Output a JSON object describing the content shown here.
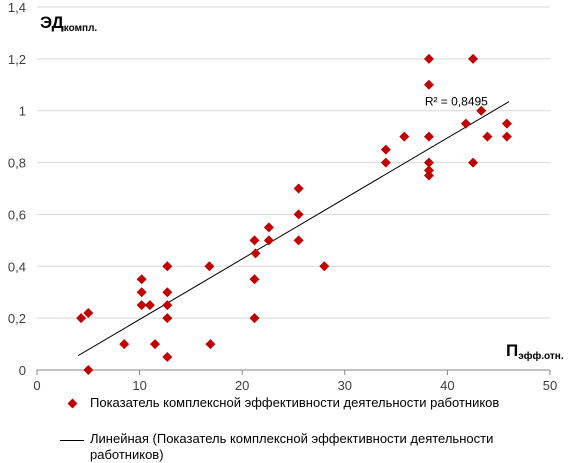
{
  "chart_data": {
    "type": "scatter",
    "xlabel": {
      "main": "П",
      "sub": "эфф.отн."
    },
    "ylabel": {
      "main": "ЭД",
      "sub": "компл."
    },
    "xlim": [
      0,
      50
    ],
    "ylim": [
      0,
      1.4
    ],
    "x_ticks": [
      "0",
      "10",
      "20",
      "30",
      "40",
      "50"
    ],
    "y_ticks": [
      "0",
      "0,2",
      "0,4",
      "0,6",
      "0,8",
      "1",
      "1,2",
      "1,4"
    ],
    "grid": "horizontal",
    "marker_color": "#c00000",
    "trendline_color": "#000000",
    "series": [
      {
        "name": "Показатель комплексной эффективности деятельности работников",
        "points": [
          [
            4.3,
            0.2
          ],
          [
            5.0,
            0.22
          ],
          [
            5.0,
            0.0
          ],
          [
            8.5,
            0.1
          ],
          [
            10.2,
            0.35
          ],
          [
            10.2,
            0.3
          ],
          [
            10.2,
            0.25
          ],
          [
            11.0,
            0.25
          ],
          [
            11.5,
            0.1
          ],
          [
            12.7,
            0.4
          ],
          [
            12.7,
            0.3
          ],
          [
            12.7,
            0.25
          ],
          [
            12.7,
            0.2
          ],
          [
            12.7,
            0.05
          ],
          [
            16.8,
            0.4
          ],
          [
            16.9,
            0.1
          ],
          [
            21.2,
            0.5
          ],
          [
            21.3,
            0.45
          ],
          [
            21.2,
            0.35
          ],
          [
            21.2,
            0.2
          ],
          [
            22.6,
            0.55
          ],
          [
            22.6,
            0.5
          ],
          [
            25.5,
            0.7
          ],
          [
            25.5,
            0.6
          ],
          [
            25.5,
            0.5
          ],
          [
            28.0,
            0.4
          ],
          [
            34.0,
            0.85
          ],
          [
            34.0,
            0.8
          ],
          [
            35.8,
            0.9
          ],
          [
            38.2,
            1.2
          ],
          [
            38.2,
            1.1
          ],
          [
            38.2,
            0.9
          ],
          [
            38.2,
            0.8
          ],
          [
            38.2,
            0.77
          ],
          [
            38.2,
            0.75
          ],
          [
            41.8,
            0.95
          ],
          [
            42.5,
            1.2
          ],
          [
            42.5,
            0.8
          ],
          [
            43.3,
            1.0
          ],
          [
            43.9,
            0.9
          ],
          [
            45.8,
            0.95
          ],
          [
            45.8,
            0.9
          ]
        ]
      }
    ],
    "trendline": {
      "name": "Линейная (Показатель комплексной эффективности деятельности работников)",
      "x_range": [
        4.0,
        46.0
      ],
      "y_range": [
        0.055,
        1.035
      ],
      "annotation": "R² = 0,8495"
    }
  }
}
